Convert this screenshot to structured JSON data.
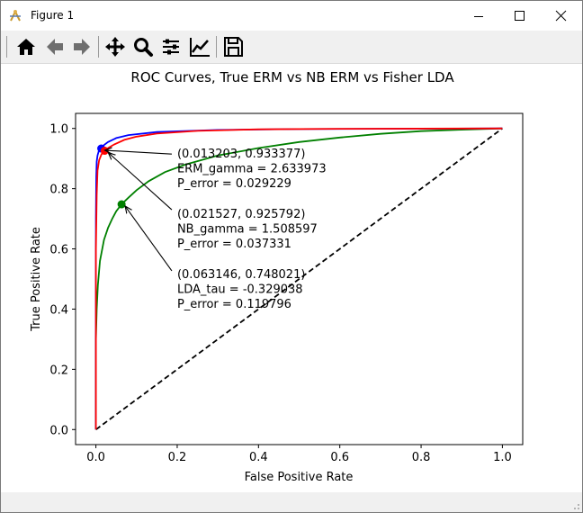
{
  "window": {
    "title": "Figure 1"
  },
  "toolbar": {
    "items": [
      {
        "name": "home-icon"
      },
      {
        "name": "back-arrow-icon"
      },
      {
        "name": "forward-arrow-icon"
      },
      {
        "name": "pan-icon"
      },
      {
        "name": "zoom-icon"
      },
      {
        "name": "subplots-icon"
      },
      {
        "name": "edit-curves-icon"
      },
      {
        "name": "save-icon"
      }
    ]
  },
  "colors": {
    "erm": "#0000ff",
    "nb": "#ff0000",
    "lda": "#008000",
    "chance": "#000000"
  },
  "chart_data": {
    "type": "line",
    "title": "ROC Curves, True ERM vs NB ERM vs Fisher LDA",
    "xlabel": "False Positive Rate",
    "ylabel": "True Positive Rate",
    "xlim": [
      -0.05,
      1.05
    ],
    "ylim": [
      -0.05,
      1.05
    ],
    "xticks": [
      "0.0",
      "0.2",
      "0.4",
      "0.6",
      "0.8",
      "1.0"
    ],
    "yticks": [
      "0.0",
      "0.2",
      "0.4",
      "0.6",
      "0.8",
      "1.0"
    ],
    "grid": false,
    "series": [
      {
        "color": "#0000ff",
        "linestyle": "solid",
        "x": [
          0,
          0.0,
          0.001,
          0.002,
          0.004,
          0.007,
          0.013203,
          0.02,
          0.03,
          0.05,
          0.08,
          0.15,
          0.3,
          0.5,
          0.7,
          1.0
        ],
        "y": [
          0,
          0.7,
          0.84,
          0.89,
          0.91,
          0.925,
          0.933377,
          0.945,
          0.955,
          0.968,
          0.978,
          0.988,
          0.995,
          0.998,
          0.999,
          1.0
        ]
      },
      {
        "color": "#ff0000",
        "linestyle": "solid",
        "x": [
          0,
          0.0,
          0.002,
          0.004,
          0.008,
          0.014,
          0.021527,
          0.03,
          0.045,
          0.07,
          0.1,
          0.15,
          0.25,
          0.4,
          0.6,
          1.0
        ],
        "y": [
          0,
          0.6,
          0.78,
          0.86,
          0.895,
          0.915,
          0.925792,
          0.935,
          0.947,
          0.962,
          0.973,
          0.983,
          0.992,
          0.997,
          0.999,
          1.0
        ]
      },
      {
        "color": "#008000",
        "linestyle": "solid",
        "x": [
          0,
          0.0,
          0.002,
          0.005,
          0.01,
          0.02,
          0.03,
          0.04,
          0.05,
          0.063146,
          0.08,
          0.1,
          0.13,
          0.17,
          0.22,
          0.3,
          0.4,
          0.5,
          0.6,
          0.7,
          0.8,
          0.9,
          1.0
        ],
        "y": [
          0,
          0.3,
          0.4,
          0.48,
          0.56,
          0.63,
          0.67,
          0.7,
          0.725,
          0.748021,
          0.77,
          0.795,
          0.825,
          0.855,
          0.88,
          0.91,
          0.935,
          0.955,
          0.97,
          0.982,
          0.991,
          0.996,
          1.0
        ]
      },
      {
        "color": "#000000",
        "linestyle": "dashed",
        "x": [
          0,
          1.0
        ],
        "y": [
          0,
          1.0
        ]
      }
    ],
    "markers": [
      {
        "x": 0.013203,
        "y": 0.933377,
        "color": "#0000ff"
      },
      {
        "x": 0.021527,
        "y": 0.925792,
        "color": "#ff0000"
      },
      {
        "x": 0.063146,
        "y": 0.748021,
        "color": "#008000"
      }
    ],
    "annotations": [
      {
        "point": [
          0.013203,
          0.933377
        ],
        "text_pos": [
          0.2,
          0.915
        ],
        "lines": [
          "(0.013203, 0.933377)",
          "ERM_gamma = 2.633973",
          "P_error = 0.029229"
        ]
      },
      {
        "point": [
          0.021527,
          0.925792
        ],
        "text_pos": [
          0.2,
          0.715
        ],
        "lines": [
          "(0.021527, 0.925792)",
          "NB_gamma = 1.508597",
          "P_error = 0.037331"
        ]
      },
      {
        "point": [
          0.063146,
          0.748021
        ],
        "text_pos": [
          0.2,
          0.515
        ],
        "lines": [
          "(0.063146, 0.748021)",
          "LDA_tau = -0.329038",
          "P_error = 0.119796"
        ]
      }
    ]
  }
}
